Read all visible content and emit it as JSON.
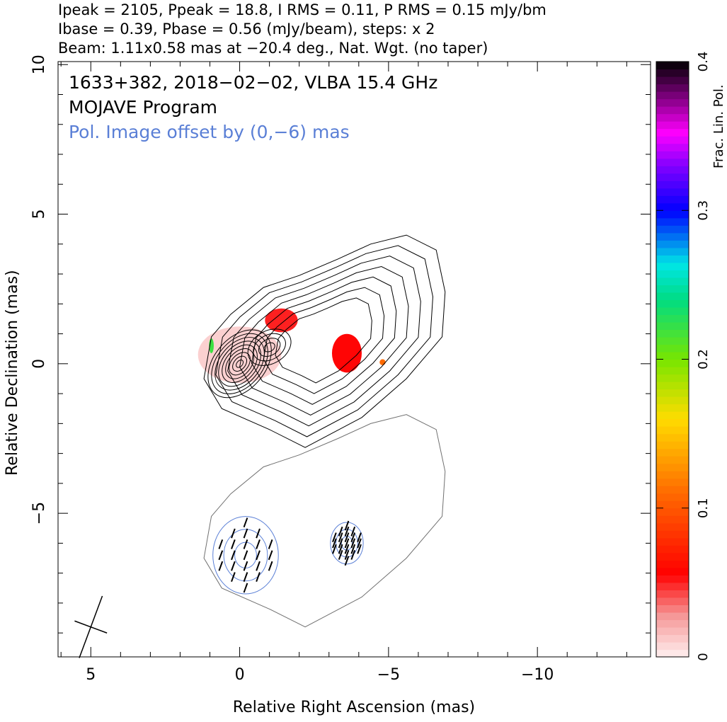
{
  "header": {
    "line1": "Ipeak = 2105, Ppeak = 18.8, I RMS = 0.11, P RMS = 0.15 mJy/bm",
    "line2": "Ibase = 0.39, Pbase = 0.56 (mJy/beam), steps: x 2",
    "line3": "Beam: 1.11x0.58 mas at −20.4 deg., Nat. Wgt. (no taper)"
  },
  "annotations": {
    "source": "1633+382, 2018−02−02, VLBA 15.4 GHz",
    "program": "MOJAVE Program",
    "offset_note": "Pol. Image offset by (0,−6) mas"
  },
  "colors": {
    "offset_note": "#5a7fd6",
    "i_contour": "#000000",
    "pol_contour": "#5a7fd6",
    "pol_outline": "#707070"
  },
  "chart_data": {
    "type": "contour",
    "xlabel": "Relative Right Ascension (mas)",
    "ylabel": "Relative Declination (mas)",
    "xlim": [
      6.1,
      -13.8
    ],
    "ylim": [
      -9.8,
      10.1
    ],
    "x_ticks": [
      5,
      0,
      -5,
      -10
    ],
    "x_tick_labels": [
      "5",
      "0",
      "−5",
      "−10"
    ],
    "y_ticks": [
      10,
      5,
      0,
      -5
    ],
    "y_tick_labels": [
      "10",
      "5",
      "0",
      "−5"
    ],
    "intensity_peak_mjy_per_beam": 2105,
    "polarization_peak_mjy_per_beam": 18.8,
    "i_rms_mjy_per_beam": 0.11,
    "p_rms_mjy_per_beam": 0.15,
    "i_base_mjy_per_beam": 0.39,
    "p_base_mjy_per_beam": 0.56,
    "contour_step": "x 2",
    "beam": {
      "major_mas": 1.11,
      "minor_mas": 0.58,
      "pa_deg": -20.4,
      "center": [
        5.0,
        -8.8
      ]
    },
    "pol_image_offset_mas": [
      0,
      -6
    ],
    "core_components": [
      {
        "x": 0.0,
        "y": 0.0,
        "a": 0.5,
        "b": 0.33,
        "pa_deg": 50
      },
      {
        "x": -1.0,
        "y": 0.55,
        "a": 0.35,
        "b": 0.25,
        "pa_deg": 30
      }
    ],
    "outer_contour": [
      [
        0.95,
        0.9
      ],
      [
        0.3,
        1.65
      ],
      [
        -0.8,
        2.55
      ],
      [
        -2.0,
        2.95
      ],
      [
        -3.3,
        3.5
      ],
      [
        -4.4,
        4.0
      ],
      [
        -5.6,
        4.3
      ],
      [
        -6.6,
        3.8
      ],
      [
        -6.9,
        2.4
      ],
      [
        -6.8,
        0.9
      ],
      [
        -5.6,
        -0.5
      ],
      [
        -4.1,
        -1.8
      ],
      [
        -2.2,
        -2.8
      ],
      [
        -1.0,
        -2.2
      ],
      [
        0.6,
        -1.5
      ],
      [
        1.2,
        -0.5
      ]
    ],
    "fractional_pol_regions": [
      {
        "x": 0.0,
        "y": 0.3,
        "rx": 1.4,
        "ry": 0.95,
        "frac": 0.01
      },
      {
        "x": -1.4,
        "y": 1.45,
        "rx": 0.55,
        "ry": 0.4,
        "frac": 0.05
      },
      {
        "x": -3.6,
        "y": 0.35,
        "rx": 0.5,
        "ry": 0.65,
        "frac": 0.055
      },
      {
        "x": -4.8,
        "y": 0.05,
        "rx": 0.1,
        "ry": 0.1,
        "frac": 0.11
      },
      {
        "x": 0.95,
        "y": 0.6,
        "rx": 0.08,
        "ry": 0.25,
        "frac": 0.22
      }
    ],
    "pol_regions": [
      {
        "x": -0.2,
        "y": -6.4,
        "rx": 1.1,
        "ry": 1.3
      },
      {
        "x": -3.6,
        "y": -6.0,
        "rx": 0.55,
        "ry": 0.7
      }
    ],
    "colorbar": {
      "label": "Frac. Lin. Pol.",
      "min": 0,
      "max": 0.4,
      "ticks": [
        0,
        0.1,
        0.2,
        0.3,
        0.4
      ],
      "tick_labels": [
        "0",
        "0.1",
        "0.2",
        "0.3",
        "0.4"
      ]
    }
  }
}
